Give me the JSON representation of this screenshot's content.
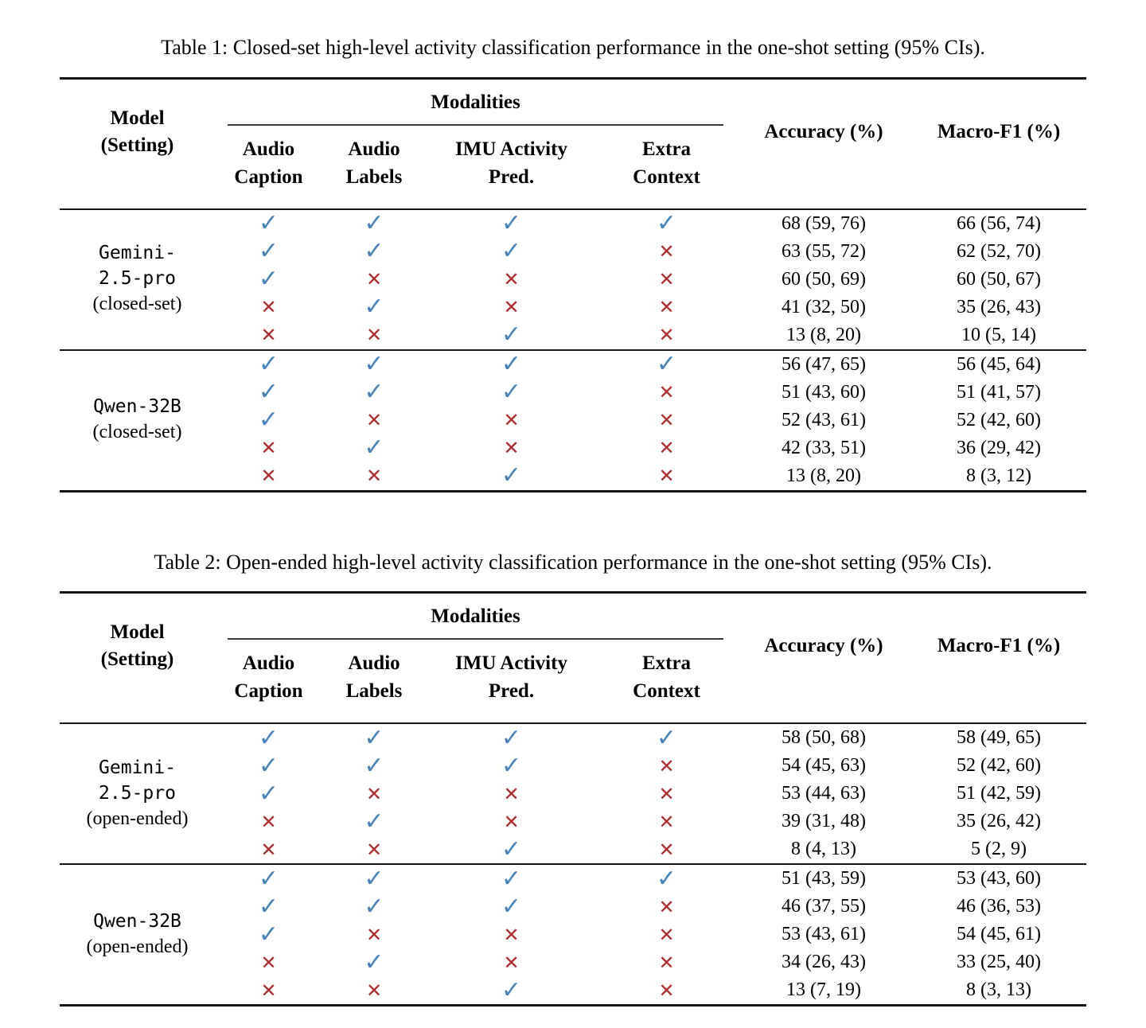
{
  "icons": {
    "check": "✓",
    "cross": "✕"
  },
  "colors": {
    "check": "#4583bb",
    "cross": "#b02c2c",
    "rule": "#151515"
  },
  "tables": [
    {
      "caption": "Table 1: Closed-set high-level activity classification performance in the one-shot setting (95% CIs).",
      "headers": {
        "model": "Model\n(Setting)",
        "modalities": "Modalities",
        "accuracy": "Accuracy (%)",
        "macro_f1": "Macro-F1 (%)",
        "modality_columns": [
          "Audio\nCaption",
          "Audio\nLabels",
          "IMU Activity\nPred.",
          "Extra\nContext"
        ]
      },
      "sections": [
        {
          "model_lines": [
            "Gemini-",
            "2.5-pro"
          ],
          "setting": "(closed-set)",
          "rows": [
            {
              "marks": [
                "check",
                "check",
                "check",
                "check"
              ],
              "accuracy": "68 (59, 76)",
              "macro_f1": "66 (56, 74)"
            },
            {
              "marks": [
                "check",
                "check",
                "check",
                "cross"
              ],
              "accuracy": "63 (55, 72)",
              "macro_f1": "62 (52, 70)"
            },
            {
              "marks": [
                "check",
                "cross",
                "cross",
                "cross"
              ],
              "accuracy": "60 (50, 69)",
              "macro_f1": "60 (50, 67)"
            },
            {
              "marks": [
                "cross",
                "check",
                "cross",
                "cross"
              ],
              "accuracy": "41 (32, 50)",
              "macro_f1": "35 (26, 43)"
            },
            {
              "marks": [
                "cross",
                "cross",
                "check",
                "cross"
              ],
              "accuracy": "13 (8, 20)",
              "macro_f1": "10 (5, 14)"
            }
          ]
        },
        {
          "model_lines": [
            "Qwen-32B"
          ],
          "setting": "(closed-set)",
          "rows": [
            {
              "marks": [
                "check",
                "check",
                "check",
                "check"
              ],
              "accuracy": "56 (47, 65)",
              "macro_f1": "56 (45, 64)"
            },
            {
              "marks": [
                "check",
                "check",
                "check",
                "cross"
              ],
              "accuracy": "51 (43, 60)",
              "macro_f1": "51 (41, 57)"
            },
            {
              "marks": [
                "check",
                "cross",
                "cross",
                "cross"
              ],
              "accuracy": "52 (43, 61)",
              "macro_f1": "52 (42, 60)"
            },
            {
              "marks": [
                "cross",
                "check",
                "cross",
                "cross"
              ],
              "accuracy": "42 (33, 51)",
              "macro_f1": "36 (29, 42)"
            },
            {
              "marks": [
                "cross",
                "cross",
                "check",
                "cross"
              ],
              "accuracy": "13 (8, 20)",
              "macro_f1": "8 (3, 12)"
            }
          ]
        }
      ]
    },
    {
      "caption": "Table 2: Open-ended high-level activity classification performance in the one-shot setting (95% CIs).",
      "headers": {
        "model": "Model\n(Setting)",
        "modalities": "Modalities",
        "accuracy": "Accuracy (%)",
        "macro_f1": "Macro-F1 (%)",
        "modality_columns": [
          "Audio\nCaption",
          "Audio\nLabels",
          "IMU Activity\nPred.",
          "Extra\nContext"
        ]
      },
      "sections": [
        {
          "model_lines": [
            "Gemini-",
            "2.5-pro"
          ],
          "setting": "(open-ended)",
          "rows": [
            {
              "marks": [
                "check",
                "check",
                "check",
                "check"
              ],
              "accuracy": "58 (50, 68)",
              "macro_f1": "58 (49, 65)"
            },
            {
              "marks": [
                "check",
                "check",
                "check",
                "cross"
              ],
              "accuracy": "54 (45, 63)",
              "macro_f1": "52 (42, 60)"
            },
            {
              "marks": [
                "check",
                "cross",
                "cross",
                "cross"
              ],
              "accuracy": "53 (44, 63)",
              "macro_f1": "51 (42, 59)"
            },
            {
              "marks": [
                "cross",
                "check",
                "cross",
                "cross"
              ],
              "accuracy": "39 (31, 48)",
              "macro_f1": "35 (26, 42)"
            },
            {
              "marks": [
                "cross",
                "cross",
                "check",
                "cross"
              ],
              "accuracy": "8 (4, 13)",
              "macro_f1": "5 (2, 9)"
            }
          ]
        },
        {
          "model_lines": [
            "Qwen-32B"
          ],
          "setting": "(open-ended)",
          "rows": [
            {
              "marks": [
                "check",
                "check",
                "check",
                "check"
              ],
              "accuracy": "51 (43, 59)",
              "macro_f1": "53 (43, 60)"
            },
            {
              "marks": [
                "check",
                "check",
                "check",
                "cross"
              ],
              "accuracy": "46 (37, 55)",
              "macro_f1": "46 (36, 53)"
            },
            {
              "marks": [
                "check",
                "cross",
                "cross",
                "cross"
              ],
              "accuracy": "53 (43, 61)",
              "macro_f1": "54 (45, 61)"
            },
            {
              "marks": [
                "cross",
                "check",
                "cross",
                "cross"
              ],
              "accuracy": "34 (26, 43)",
              "macro_f1": "33 (25, 40)"
            },
            {
              "marks": [
                "cross",
                "cross",
                "check",
                "cross"
              ],
              "accuracy": "13 (7, 19)",
              "macro_f1": "8 (3, 13)"
            }
          ]
        }
      ]
    }
  ]
}
